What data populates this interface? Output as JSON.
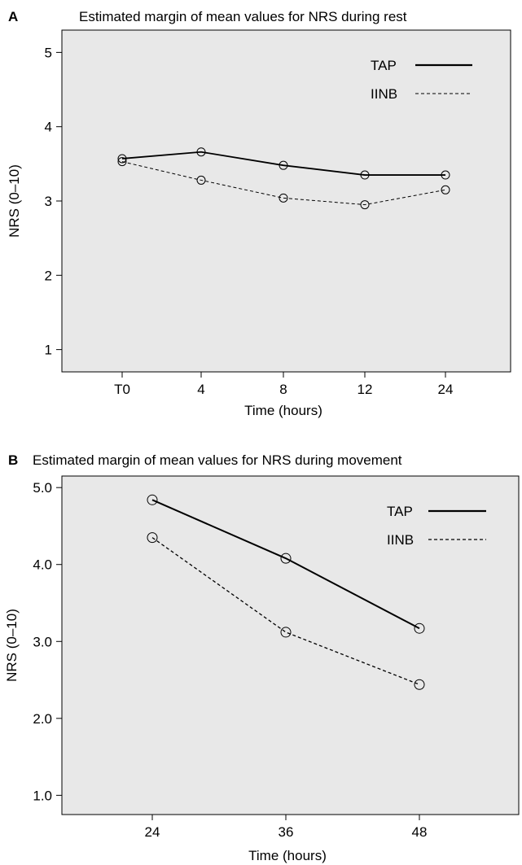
{
  "chart_data": [
    {
      "panel": "A",
      "type": "line",
      "title": "Estimated margin of mean values for NRS during rest",
      "xlabel": "Time (hours)",
      "ylabel": "NRS (0–10)",
      "categories": [
        "T0",
        "4",
        "8",
        "12",
        "24"
      ],
      "ylim": [
        0.7,
        5.3
      ],
      "yticks": [
        1,
        2,
        3,
        4,
        5
      ],
      "ytick_labels": [
        "1",
        "2",
        "3",
        "4",
        "5"
      ],
      "grid": false,
      "legend_position": "top-right",
      "background": "#e8e8e8",
      "series": [
        {
          "name": "TAP",
          "style": "solid",
          "color": "#000000",
          "values": [
            3.57,
            3.66,
            3.48,
            3.35,
            3.35
          ]
        },
        {
          "name": "IINB",
          "style": "dashed",
          "color": "#000000",
          "values": [
            3.53,
            3.28,
            3.04,
            2.95,
            3.15
          ]
        }
      ]
    },
    {
      "panel": "B",
      "type": "line",
      "title": "Estimated margin of mean values for NRS during movement",
      "xlabel": "Time (hours)",
      "ylabel": "NRS (0–10)",
      "categories": [
        "24",
        "36",
        "48"
      ],
      "ylim": [
        0.75,
        5.15
      ],
      "yticks": [
        1,
        2,
        3,
        4,
        5
      ],
      "ytick_labels": [
        "1.0",
        "2.0",
        "3.0",
        "4.0",
        "5.0"
      ],
      "grid": false,
      "legend_position": "top-right",
      "background": "#e8e8e8",
      "series": [
        {
          "name": "TAP",
          "style": "solid",
          "color": "#000000",
          "values": [
            4.84,
            4.08,
            3.17
          ]
        },
        {
          "name": "IINB",
          "style": "dashed",
          "color": "#000000",
          "values": [
            4.35,
            3.12,
            2.44
          ]
        }
      ]
    }
  ]
}
